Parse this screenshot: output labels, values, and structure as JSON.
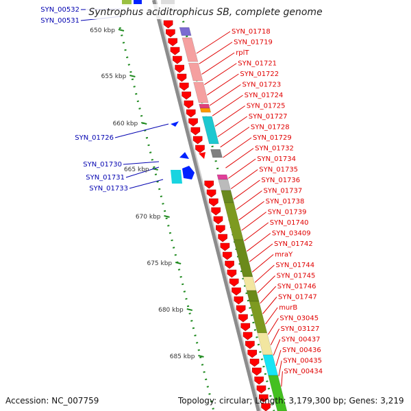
{
  "title": "Syntrophus aciditrophicus SB, complete genome",
  "footer": {
    "accession": "Accession: NC_007759",
    "topology": "Topology: circular; Length: 3,179,300 bp; Genes: 3,219"
  },
  "colors": {
    "backbone": "#8c8c8c",
    "forward_gene": "#ff0000",
    "reverse_gene": "#0022ff",
    "forward_label": "#e00000",
    "reverse_label": "#0000b0",
    "scale_dots": "#1f8a1f"
  },
  "scale_ticks": [
    "650 kbp",
    "655 kbp",
    "660 kbp",
    "665 kbp",
    "670 kbp",
    "675 kbp",
    "680 kbp",
    "685 kbp"
  ],
  "left_labels": [
    "SYN_00532",
    "SYN_00531",
    "SYN_01726",
    "SYN_01730",
    "SYN_01731",
    "SYN_01733"
  ],
  "right_labels": [
    "SYN_01718",
    "SYN_01719",
    "rplT",
    "SYN_01721",
    "SYN_01722",
    "SYN_01723",
    "SYN_01724",
    "SYN_01725",
    "SYN_01727",
    "SYN_01728",
    "SYN_01729",
    "SYN_01732",
    "SYN_01734",
    "SYN_01735",
    "SYN_01736",
    "SYN_01737",
    "SYN_01738",
    "SYN_01739",
    "SYN_01740",
    "SYN_03409",
    "SYN_01742",
    "mraY",
    "SYN_01744",
    "SYN_01745",
    "SYN_01746",
    "SYN_01747",
    "murB",
    "SYN_03045",
    "SYN_03127",
    "SYN_00437",
    "SYN_00436",
    "SYN_00435",
    "SYN_00434"
  ]
}
